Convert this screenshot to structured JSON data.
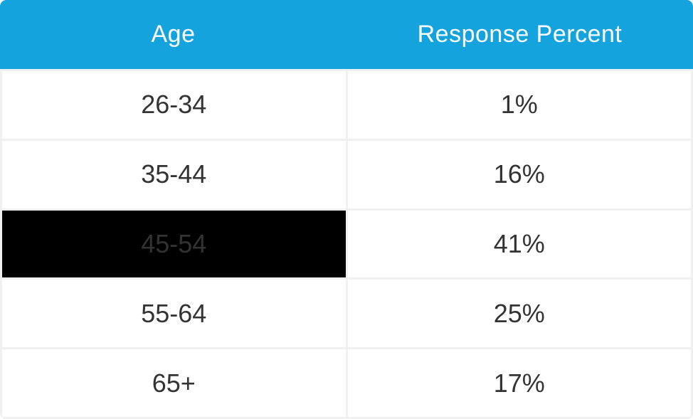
{
  "table": {
    "columns": [
      {
        "label": "Age"
      },
      {
        "label": "Response Percent"
      }
    ],
    "rows": [
      {
        "age": "26-34",
        "percent": "1%",
        "highlighted": false
      },
      {
        "age": "35-44",
        "percent": "16%",
        "highlighted": false
      },
      {
        "age": "45-54",
        "percent": "41%",
        "highlighted": true
      },
      {
        "age": "55-64",
        "percent": "25%",
        "highlighted": false
      },
      {
        "age": "65+",
        "percent": "17%",
        "highlighted": false
      }
    ]
  },
  "colors": {
    "header_bg": "#14a3dc",
    "header_text": "#ffffff",
    "body_text": "#333333",
    "grid_border": "#f0f0f0",
    "highlight_bg": "#000000",
    "highlight_text": "#333333"
  },
  "chart_data": {
    "type": "table",
    "title": "",
    "columns": [
      "Age",
      "Response Percent"
    ],
    "categories": [
      "26-34",
      "35-44",
      "45-54",
      "55-64",
      "65+"
    ],
    "values": [
      1,
      16,
      41,
      25,
      17
    ],
    "value_unit": "%",
    "highlighted_row": "45-54",
    "layout": {
      "header_position": "top",
      "column_split": "50/50",
      "gridlines": true
    }
  }
}
